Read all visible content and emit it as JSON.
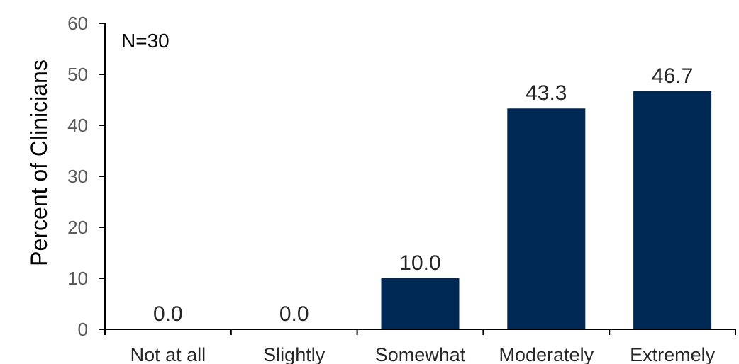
{
  "chart_data": {
    "type": "bar",
    "title": "",
    "xlabel": "",
    "ylabel": "Percent of Clinicians",
    "annotation": "N=30",
    "categories": [
      "Not at all",
      "Slightly",
      "Somewhat",
      "Moderately",
      "Extremely"
    ],
    "values": [
      0.0,
      0.0,
      10.0,
      43.3,
      46.7
    ],
    "data_labels": [
      "0.0",
      "0.0",
      "10.0",
      "43.3",
      "46.7"
    ],
    "ylim": [
      0,
      60
    ],
    "yticks": [
      0,
      10,
      20,
      30,
      40,
      50,
      60
    ],
    "grid": false,
    "legend": "none",
    "bar_color": "#002855"
  }
}
